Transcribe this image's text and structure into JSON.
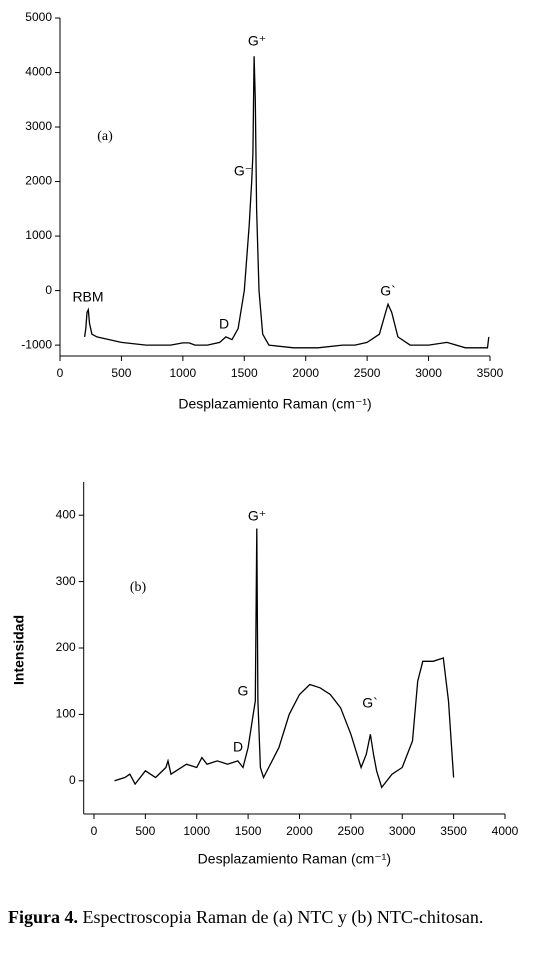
{
  "chart_data": [
    {
      "type": "line",
      "x_label": "Desplazamiento Raman (cm⁻¹)",
      "color": "#000000",
      "annotations": [
        "(a)",
        "RBM",
        "D",
        "G⁻",
        "G⁺",
        "G`"
      ],
      "x": [
        200,
        210,
        220,
        230,
        240,
        260,
        300,
        400,
        500,
        700,
        900,
        1000,
        1050,
        1100,
        1200,
        1300,
        1350,
        1400,
        1450,
        1500,
        1540,
        1560,
        1570,
        1580,
        1590,
        1600,
        1620,
        1650,
        1700,
        1900,
        2100,
        2300,
        2400,
        2500,
        2600,
        2650,
        2670,
        2700,
        2750,
        2850,
        3000,
        3150,
        3300,
        3480,
        3490
      ],
      "values": [
        -850,
        -700,
        -400,
        -350,
        -600,
        -800,
        -850,
        -900,
        -950,
        -1000,
        -1000,
        -960,
        -960,
        -1000,
        -1000,
        -950,
        -850,
        -900,
        -700,
        0,
        1200,
        2000,
        2500,
        4300,
        3500,
        1500,
        0,
        -800,
        -1000,
        -1050,
        -1050,
        -1000,
        -1000,
        -950,
        -800,
        -400,
        -250,
        -400,
        -850,
        -1000,
        -1000,
        -950,
        -1050,
        -1050,
        -850
      ],
      "xlim": [
        0,
        3500
      ],
      "xticks": [
        0,
        500,
        1000,
        1500,
        2000,
        2500,
        3000,
        3500
      ],
      "ylim": [
        -1200,
        5000
      ],
      "yticks": [
        -1000,
        0,
        1000,
        2000,
        3000,
        4000,
        5000
      ]
    },
    {
      "type": "line",
      "x_label": "Desplazamiento Raman (cm⁻¹)",
      "y_label": "Intensidad",
      "color": "#000000",
      "annotations": [
        "(b)",
        "G⁺",
        "G",
        "D",
        "G`"
      ],
      "x": [
        200,
        300,
        350,
        400,
        500,
        550,
        600,
        700,
        720,
        750,
        800,
        900,
        1000,
        1050,
        1100,
        1200,
        1300,
        1400,
        1450,
        1500,
        1550,
        1570,
        1585,
        1595,
        1620,
        1650,
        1700,
        1800,
        1900,
        2000,
        2100,
        2200,
        2300,
        2400,
        2500,
        2600,
        2650,
        2690,
        2720,
        2750,
        2800,
        2900,
        3000,
        3100,
        3150,
        3200,
        3300,
        3400,
        3450,
        3500
      ],
      "values": [
        0,
        5,
        10,
        -5,
        15,
        10,
        5,
        20,
        30,
        10,
        15,
        25,
        20,
        35,
        25,
        30,
        25,
        30,
        20,
        50,
        100,
        120,
        380,
        120,
        20,
        5,
        20,
        50,
        100,
        130,
        145,
        140,
        130,
        110,
        70,
        20,
        40,
        70,
        40,
        15,
        -10,
        10,
        20,
        60,
        150,
        180,
        180,
        185,
        120,
        5
      ],
      "xlim": [
        -100,
        4000
      ],
      "xticks": [
        0,
        500,
        1000,
        1500,
        2000,
        2500,
        3000,
        3500,
        4000
      ],
      "ylim": [
        -50,
        450
      ],
      "yticks": [
        0,
        100,
        200,
        300,
        400
      ]
    }
  ],
  "caption": {
    "label": "Figura 4.",
    "text": "Espectroscopia Raman de (a) NTC y (b) NTC-chitosan."
  }
}
